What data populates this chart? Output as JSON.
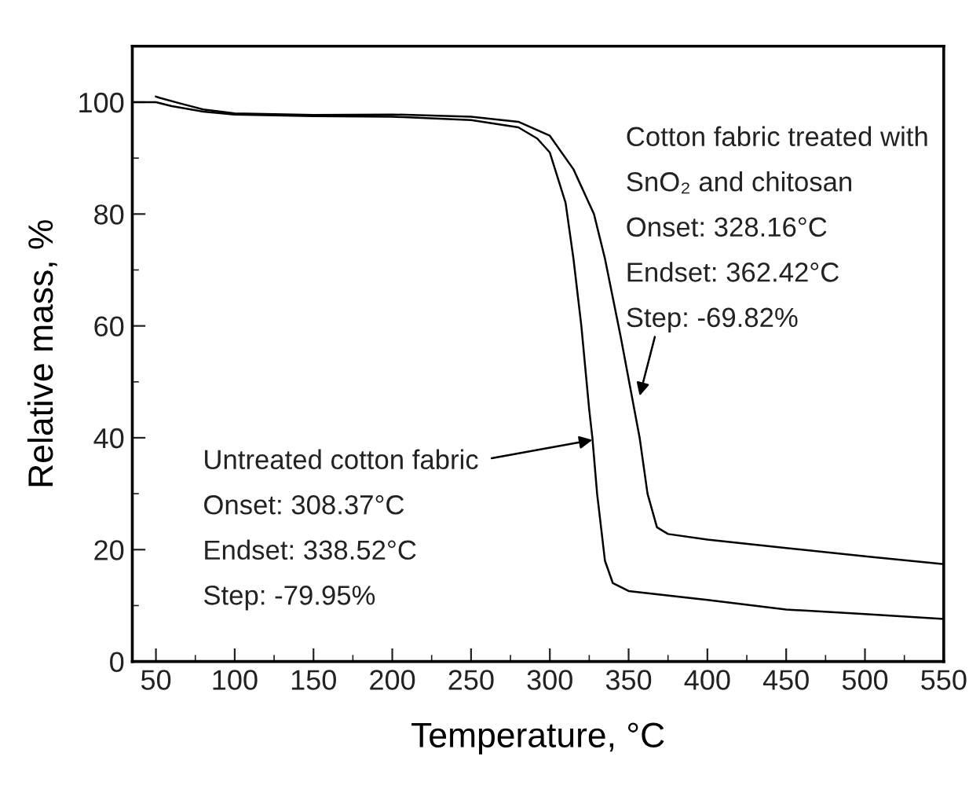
{
  "chart_data": {
    "type": "line",
    "xlabel": "Temperature, °C",
    "ylabel": "Relative mass, %",
    "xlim": [
      35,
      550
    ],
    "ylim": [
      0,
      110
    ],
    "xticks": [
      50,
      100,
      150,
      200,
      250,
      300,
      350,
      400,
      450,
      500,
      550
    ],
    "yticks": [
      0,
      20,
      40,
      60,
      80,
      100
    ],
    "grid": false,
    "legend": false,
    "marker": "none",
    "line_style": "solid",
    "series": [
      {
        "color": "#000000",
        "x": [
          35,
          50,
          60,
          80,
          100,
          150,
          200,
          250,
          280,
          292,
          300,
          310,
          315,
          320,
          325,
          327,
          330,
          335,
          340,
          350,
          400,
          450,
          500,
          550
        ],
        "values": [
          100,
          100,
          99.3,
          98.3,
          97.8,
          97.5,
          97.4,
          96.8,
          95.5,
          93.5,
          91,
          82,
          72,
          60,
          45,
          40,
          30,
          18,
          14,
          12.6,
          11,
          9.3,
          8.5,
          7.6
        ]
      },
      {
        "color": "#000000",
        "x": [
          50,
          52,
          65,
          80,
          100,
          150,
          200,
          250,
          280,
          300,
          315,
          328,
          335,
          345,
          357,
          362,
          368,
          375,
          400,
          450,
          500,
          550
        ],
        "values": [
          101,
          100.8,
          99.8,
          98.7,
          98,
          97.7,
          97.8,
          97.4,
          96.5,
          94,
          88,
          80,
          72,
          58,
          40,
          30,
          24,
          22.8,
          21.8,
          20.3,
          18.8,
          17.4
        ]
      }
    ],
    "annotations": [
      {
        "text": "Untreated cotton fabric\nOnset: 308.37°C\nEndset: 338.52°C\nStep: -79.95%",
        "x": 327,
        "y": 39.6
      },
      {
        "text": "Cotton fabric treated with\nSnO₂ and chitosan\nOnset: 328.16°C\nEndset: 362.42°C\nStep: -69.82%",
        "x": 357,
        "y": 47.5
      }
    ]
  }
}
